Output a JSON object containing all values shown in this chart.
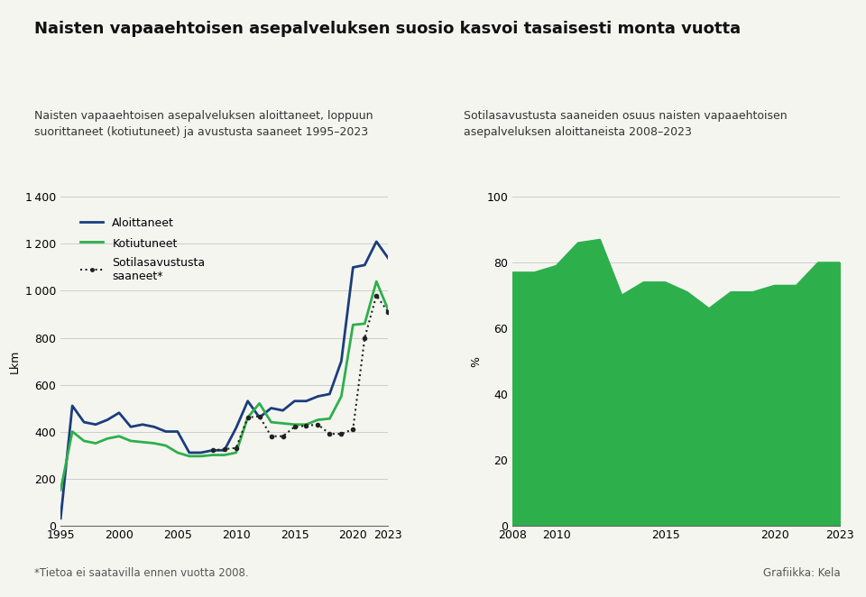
{
  "title": "Naisten vapaaehtoisen asepalveluksen suosio kasvoi tasaisesti monta vuotta",
  "left_subtitle": "Naisten vapaaehtoisen asepalveluksen aloittaneet, loppuun\nsuorittaneet (kotiutuneet) ja avustusta saaneet 1995–2023",
  "right_subtitle": "Sotilasavustusta saaneiden osuus naisten vapaaehtoisen\nasepalveluksen aloittaneista 2008–2023",
  "footnote": "*Tietoa ei saatavilla ennen vuotta 2008.",
  "credit": "Grafiikka: Kela",
  "left_ylabel": "Lkm",
  "right_ylabel": "%",
  "background_color": "#f5f5f0",
  "aloittaneet_years": [
    1995,
    1996,
    1997,
    1998,
    1999,
    2000,
    2001,
    2002,
    2003,
    2004,
    2005,
    2006,
    2007,
    2008,
    2009,
    2010,
    2011,
    2012,
    2013,
    2014,
    2015,
    2016,
    2017,
    2018,
    2019,
    2020,
    2021,
    2022,
    2023
  ],
  "aloittaneet_values": [
    30,
    510,
    440,
    430,
    450,
    480,
    420,
    430,
    420,
    400,
    400,
    310,
    310,
    320,
    320,
    415,
    530,
    460,
    500,
    490,
    530,
    530,
    550,
    560,
    700,
    1100,
    1110,
    1210,
    1140
  ],
  "kotiutuneet_years": [
    1995,
    1996,
    1997,
    1998,
    1999,
    2000,
    2001,
    2002,
    2003,
    2004,
    2005,
    2006,
    2007,
    2008,
    2009,
    2010,
    2011,
    2012,
    2013,
    2014,
    2015,
    2016,
    2017,
    2018,
    2019,
    2020,
    2021,
    2022,
    2023
  ],
  "kotiutuneet_values": [
    150,
    400,
    360,
    350,
    370,
    380,
    360,
    355,
    350,
    340,
    310,
    295,
    295,
    300,
    300,
    310,
    460,
    520,
    440,
    435,
    430,
    430,
    450,
    455,
    550,
    855,
    860,
    1040,
    920
  ],
  "sotilasavustus_years": [
    2008,
    2009,
    2010,
    2011,
    2012,
    2013,
    2014,
    2015,
    2016,
    2017,
    2018,
    2019,
    2020,
    2021,
    2022,
    2023
  ],
  "sotilasavustus_values": [
    320,
    325,
    330,
    460,
    465,
    380,
    380,
    420,
    425,
    430,
    390,
    390,
    410,
    800,
    980,
    910
  ],
  "pct_years": [
    2008,
    2009,
    2010,
    2011,
    2012,
    2013,
    2014,
    2015,
    2016,
    2017,
    2018,
    2019,
    2020,
    2021,
    2022,
    2023
  ],
  "pct_values": [
    77,
    77,
    79,
    86,
    87,
    70,
    74,
    74,
    71,
    66,
    71,
    71,
    73,
    73,
    80,
    80
  ],
  "line_blue": "#1a3d7c",
  "line_green": "#2db04b",
  "area_green": "#2db04b",
  "dot_color": "#222222",
  "left_ylim": [
    0,
    1400
  ],
  "left_yticks": [
    0,
    200,
    400,
    600,
    800,
    1000,
    1200,
    1400
  ],
  "left_xticks": [
    1995,
    2000,
    2005,
    2010,
    2015,
    2020,
    2023
  ],
  "right_ylim": [
    0,
    100
  ],
  "right_yticks": [
    0,
    20,
    40,
    60,
    80,
    100
  ],
  "right_xticks": [
    2008,
    2010,
    2015,
    2020,
    2023
  ]
}
